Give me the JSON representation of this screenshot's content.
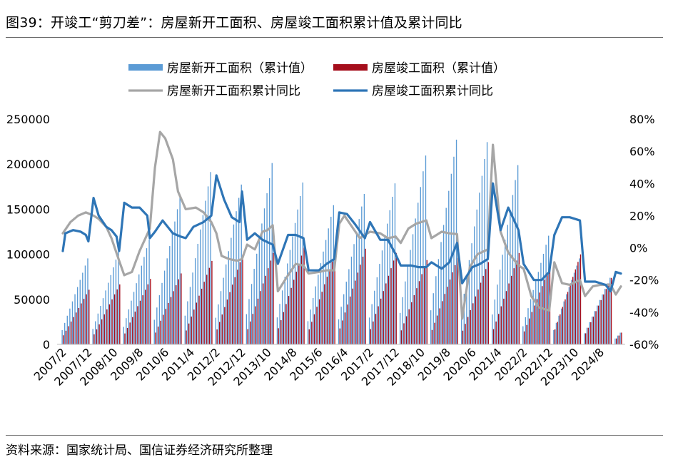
{
  "figure": {
    "title": "图39：开竣工“剪刀差”：房屋新开工面积、房屋竣工面积累计值及累计同比",
    "source": "资料来源：国家统计局、国信证券经济研究所整理"
  },
  "colors": {
    "starts_bar": "#5b9bd5",
    "completions_bar": "#a50e1c",
    "starts_yoy_line": "#a6a6a6",
    "completions_yoy_line": "#2e75b6"
  },
  "chart_data": {
    "type": "bar+line",
    "x_tick_labels": [
      "2007/2",
      "2007/12",
      "2008/10",
      "2009/8",
      "2010/6",
      "2011/4",
      "2012/2",
      "2012/12",
      "2013/10",
      "2014/8",
      "2015/6",
      "2016/4",
      "2017/2",
      "2017/12",
      "2018/10",
      "2019/8",
      "2020/6",
      "2021/4",
      "2022/2",
      "2022/12",
      "2023/10",
      "2024/8"
    ],
    "x_tick_every_months": 10,
    "x_range": [
      "2007/2",
      "2025/4"
    ],
    "left_axis": {
      "tick_labels": [
        "0",
        "50000",
        "100000",
        "150000",
        "200000",
        "250000"
      ],
      "range": [
        0,
        250000
      ]
    },
    "right_axis": {
      "tick_labels": [
        "-60%",
        "-40%",
        "-20%",
        "0%",
        "20%",
        "40%",
        "60%",
        "80%"
      ],
      "range": [
        -60,
        80
      ],
      "unit": "%"
    },
    "legend_position": "top",
    "grid": false,
    "series": [
      {
        "name": "房屋新开工面积（累计值）",
        "type": "bar",
        "axis": "left",
        "annual_values": {
          "2007": 95400,
          "2008": 102553,
          "2009": 116422,
          "2010": 163647,
          "2011": 191237,
          "2012": 177334,
          "2013": 201208,
          "2014": 179592,
          "2015": 154454,
          "2016": 166928,
          "2017": 178654,
          "2018": 209537,
          "2019": 227154,
          "2020": 224433,
          "2021": 198895,
          "2022": 120587,
          "2023": 95376,
          "2024": 73893,
          "2025": 12996
        }
      },
      {
        "name": "房屋竣工面积（累计值）",
        "type": "bar",
        "axis": "left",
        "annual_values": {
          "2007": 60607,
          "2008": 66545,
          "2009": 72677,
          "2010": 78744,
          "2011": 92620,
          "2012": 99425,
          "2013": 101435,
          "2014": 107459,
          "2015": 100039,
          "2016": 106128,
          "2017": 101486,
          "2018": 93550,
          "2019": 95942,
          "2020": 91218,
          "2021": 101412,
          "2022": 86222,
          "2023": 99831,
          "2024": 73743,
          "2025": 13060
        }
      },
      {
        "name": "房屋新开工面积累计同比",
        "type": "line",
        "axis": "right",
        "points": [
          [
            "2007/2",
            9
          ],
          [
            "2007/5",
            16
          ],
          [
            "2007/8",
            20
          ],
          [
            "2007/11",
            22
          ],
          [
            "2008/2",
            20
          ],
          [
            "2008/4",
            18
          ],
          [
            "2008/7",
            13
          ],
          [
            "2008/9",
            6
          ],
          [
            "2008/12",
            -8
          ],
          [
            "2009/2",
            -17
          ],
          [
            "2009/5",
            -15
          ],
          [
            "2009/8",
            -2
          ],
          [
            "2009/10",
            5
          ],
          [
            "2009/12",
            12
          ],
          [
            "2010/2",
            50
          ],
          [
            "2010/4",
            72
          ],
          [
            "2010/6",
            68
          ],
          [
            "2010/9",
            55
          ],
          [
            "2010/11",
            35
          ],
          [
            "2011/2",
            24
          ],
          [
            "2011/6",
            25
          ],
          [
            "2011/9",
            22
          ],
          [
            "2011/12",
            16
          ],
          [
            "2012/2",
            9
          ],
          [
            "2012/4",
            -5
          ],
          [
            "2012/7",
            -7
          ],
          [
            "2012/10",
            -8
          ],
          [
            "2012/12",
            -7
          ],
          [
            "2013/2",
            2
          ],
          [
            "2013/5",
            -1
          ],
          [
            "2013/8",
            10
          ],
          [
            "2013/10",
            11
          ],
          [
            "2013/12",
            14
          ],
          [
            "2014/2",
            -27
          ],
          [
            "2014/6",
            -17
          ],
          [
            "2014/9",
            -10
          ],
          [
            "2014/12",
            -11
          ],
          [
            "2015/2",
            -16
          ],
          [
            "2015/6",
            -15
          ],
          [
            "2015/9",
            -14
          ],
          [
            "2015/12",
            -14
          ],
          [
            "2016/2",
            15
          ],
          [
            "2016/4",
            20
          ],
          [
            "2016/7",
            13
          ],
          [
            "2016/10",
            6
          ],
          [
            "2016/12",
            8
          ],
          [
            "2017/2",
            10
          ],
          [
            "2017/6",
            9
          ],
          [
            "2017/9",
            6
          ],
          [
            "2017/12",
            7
          ],
          [
            "2018/2",
            3
          ],
          [
            "2018/5",
            12
          ],
          [
            "2018/8",
            15
          ],
          [
            "2018/12",
            17
          ],
          [
            "2019/2",
            6
          ],
          [
            "2019/6",
            10
          ],
          [
            "2019/9",
            9
          ],
          [
            "2019/12",
            8.5
          ],
          [
            "2020/2",
            -44
          ],
          [
            "2020/5",
            -12
          ],
          [
            "2020/8",
            -4
          ],
          [
            "2020/12",
            -1
          ],
          [
            "2021/2",
            64
          ],
          [
            "2021/5",
            10
          ],
          [
            "2021/8",
            -3
          ],
          [
            "2021/12",
            -11
          ],
          [
            "2022/2",
            -13
          ],
          [
            "2022/5",
            -30
          ],
          [
            "2022/8",
            -37
          ],
          [
            "2022/12",
            -39
          ],
          [
            "2023/2",
            -9
          ],
          [
            "2023/5",
            -22
          ],
          [
            "2023/8",
            -23
          ],
          [
            "2023/12",
            -20
          ],
          [
            "2024/2",
            -30
          ],
          [
            "2024/5",
            -24
          ],
          [
            "2024/8",
            -23
          ],
          [
            "2024/12",
            -23
          ],
          [
            "2025/2",
            -29
          ],
          [
            "2025/4",
            -24
          ]
        ]
      },
      {
        "name": "房屋竣工面积累计同比",
        "type": "line",
        "axis": "right",
        "points": [
          [
            "2007/2",
            -2
          ],
          [
            "2007/3",
            9
          ],
          [
            "2007/6",
            11
          ],
          [
            "2007/9",
            10
          ],
          [
            "2007/11",
            8
          ],
          [
            "2007/12",
            4
          ],
          [
            "2008/2",
            31
          ],
          [
            "2008/4",
            20
          ],
          [
            "2008/7",
            13
          ],
          [
            "2008/9",
            11
          ],
          [
            "2008/11",
            7
          ],
          [
            "2008/12",
            -2
          ],
          [
            "2009/2",
            28
          ],
          [
            "2009/5",
            25
          ],
          [
            "2009/8",
            25
          ],
          [
            "2009/11",
            20
          ],
          [
            "2009/12",
            6
          ],
          [
            "2010/2",
            10
          ],
          [
            "2010/5",
            17
          ],
          [
            "2010/9",
            9
          ],
          [
            "2010/12",
            7
          ],
          [
            "2011/2",
            6
          ],
          [
            "2011/5",
            13
          ],
          [
            "2011/9",
            16
          ],
          [
            "2011/12",
            20
          ],
          [
            "2012/2",
            45
          ],
          [
            "2012/5",
            30
          ],
          [
            "2012/8",
            19
          ],
          [
            "2012/11",
            16
          ],
          [
            "2012/12",
            35
          ],
          [
            "2013/2",
            5
          ],
          [
            "2013/5",
            9
          ],
          [
            "2013/8",
            5
          ],
          [
            "2013/12",
            2
          ],
          [
            "2014/2",
            -10
          ],
          [
            "2014/6",
            8
          ],
          [
            "2014/9",
            8
          ],
          [
            "2014/12",
            6
          ],
          [
            "2015/2",
            -14
          ],
          [
            "2015/6",
            -14
          ],
          [
            "2015/9",
            -10
          ],
          [
            "2015/12",
            -7
          ],
          [
            "2016/2",
            22
          ],
          [
            "2016/5",
            21
          ],
          [
            "2016/8",
            15
          ],
          [
            "2016/12",
            6
          ],
          [
            "2017/2",
            16
          ],
          [
            "2017/6",
            5
          ],
          [
            "2017/9",
            5
          ],
          [
            "2017/12",
            -4
          ],
          [
            "2018/2",
            -11
          ],
          [
            "2018/6",
            -11
          ],
          [
            "2018/9",
            -12
          ],
          [
            "2018/12",
            -12
          ],
          [
            "2019/2",
            -9
          ],
          [
            "2019/6",
            -13
          ],
          [
            "2019/9",
            -9
          ],
          [
            "2019/12",
            3
          ],
          [
            "2020/2",
            -22
          ],
          [
            "2020/6",
            -12
          ],
          [
            "2020/9",
            -10
          ],
          [
            "2020/12",
            -7
          ],
          [
            "2021/2",
            40
          ],
          [
            "2021/5",
            11
          ],
          [
            "2021/8",
            25
          ],
          [
            "2021/12",
            11
          ],
          [
            "2022/2",
            -10
          ],
          [
            "2022/6",
            -20
          ],
          [
            "2022/9",
            -20
          ],
          [
            "2022/12",
            -15
          ],
          [
            "2023/2",
            8
          ],
          [
            "2023/5",
            19
          ],
          [
            "2023/8",
            19
          ],
          [
            "2023/12",
            17
          ],
          [
            "2024/2",
            -21
          ],
          [
            "2024/6",
            -21
          ],
          [
            "2024/10",
            -23
          ],
          [
            "2024/12",
            -27
          ],
          [
            "2025/2",
            -15
          ],
          [
            "2025/4",
            -16
          ]
        ]
      }
    ]
  }
}
